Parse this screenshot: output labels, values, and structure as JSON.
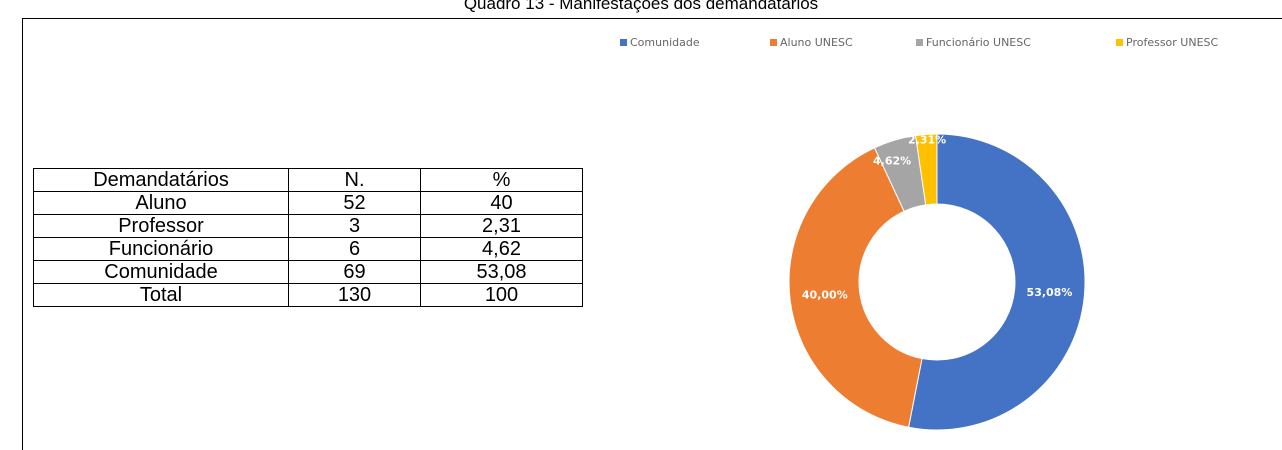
{
  "title": "Quadro 13 - Manifestações dos demandatários",
  "table": {
    "header": [
      "Demandatários",
      "N.",
      "%"
    ],
    "rows": [
      [
        "Aluno",
        "52",
        "40"
      ],
      [
        "Professor",
        "3",
        "2,31"
      ],
      [
        "Funcionário",
        "6",
        "4,62"
      ],
      [
        "Comunidade",
        "69",
        "53,08"
      ],
      [
        "Total",
        "130",
        "100"
      ]
    ]
  },
  "chart_data": {
    "type": "pie",
    "donut": true,
    "categories": [
      "Comunidade",
      "Aluno UNESC",
      "Funcionário UNESC",
      "Professor UNESC"
    ],
    "values": [
      53.08,
      40,
      4.62,
      2.31
    ],
    "value_labels": [
      "53,08%",
      "40,00%",
      "4,62%",
      "2,31%"
    ],
    "colors": [
      "#4472c4",
      "#ed7d31",
      "#a5a5a5",
      "#ffc000"
    ]
  }
}
